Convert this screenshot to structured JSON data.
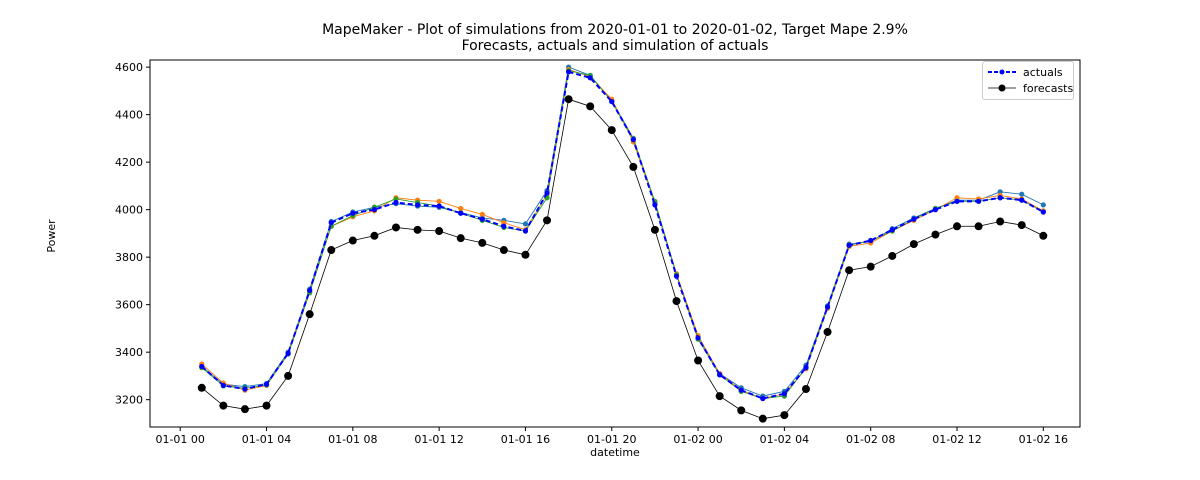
{
  "chart_data": {
    "type": "line",
    "title": "MapeMaker - Plot of simulations from 2020-01-01 to 2020-01-02, Target Mape 2.9%",
    "subtitle": "Forecasts, actuals and simulation of actuals",
    "xlabel": "datetime",
    "ylabel": "Power",
    "x_hours": [
      1,
      2,
      3,
      4,
      5,
      6,
      7,
      8,
      9,
      10,
      11,
      12,
      13,
      14,
      15,
      16,
      17,
      18,
      19,
      20,
      21,
      22,
      23,
      24,
      25,
      26,
      27,
      28,
      29,
      30,
      31,
      32,
      33,
      34,
      35,
      36,
      37,
      38,
      39,
      40
    ],
    "x_start": "2020-01-01 01:00",
    "x_end": "2020-01-02 16:00",
    "xlim_hours": [
      -1.4,
      41.7
    ],
    "xticks": [
      {
        "hour": 0,
        "label": "01-01 00"
      },
      {
        "hour": 4,
        "label": "01-01 04"
      },
      {
        "hour": 8,
        "label": "01-01 08"
      },
      {
        "hour": 12,
        "label": "01-01 12"
      },
      {
        "hour": 16,
        "label": "01-01 16"
      },
      {
        "hour": 20,
        "label": "01-01 20"
      },
      {
        "hour": 24,
        "label": "01-02 00"
      },
      {
        "hour": 28,
        "label": "01-02 04"
      },
      {
        "hour": 32,
        "label": "01-02 08"
      },
      {
        "hour": 36,
        "label": "01-02 12"
      },
      {
        "hour": 40,
        "label": "01-02 16"
      }
    ],
    "ylim": [
      3085,
      4630
    ],
    "yticks": [
      3200,
      3400,
      3600,
      3800,
      4000,
      4200,
      4400,
      4600
    ],
    "legend": {
      "position": "top-right",
      "entries": [
        "actuals",
        "forecasts"
      ]
    },
    "grid": false,
    "series": [
      {
        "name": "actuals",
        "color": "#0000ff",
        "style": "dashed",
        "marker": "small-dot",
        "values": [
          3340,
          3260,
          3245,
          3265,
          3395,
          3660,
          3945,
          3985,
          4000,
          4030,
          4020,
          4015,
          3985,
          3960,
          3930,
          3910,
          4070,
          4580,
          4555,
          4455,
          4295,
          4020,
          3720,
          3460,
          3305,
          3240,
          3205,
          3225,
          3335,
          3590,
          3850,
          3870,
          3915,
          3960,
          4000,
          4035,
          4035,
          4050,
          4040,
          3990
        ]
      },
      {
        "name": "forecasts",
        "color": "#000000",
        "style": "solid",
        "marker": "large-dot",
        "values": [
          3250,
          3175,
          3160,
          3175,
          3300,
          3560,
          3830,
          3870,
          3890,
          3925,
          3915,
          3910,
          3880,
          3860,
          3830,
          3810,
          3955,
          4465,
          4435,
          4335,
          4180,
          3915,
          3615,
          3365,
          3215,
          3155,
          3120,
          3135,
          3245,
          3485,
          3745,
          3760,
          3805,
          3855,
          3895,
          3930,
          3930,
          3950,
          3935,
          3890
        ]
      },
      {
        "color": "#1f77b4",
        "style": "solid",
        "marker": "small-dot",
        "values": [
          3340,
          3265,
          3255,
          3268,
          3400,
          3665,
          3950,
          3990,
          4010,
          4025,
          4015,
          4010,
          3988,
          3965,
          3955,
          3940,
          4080,
          4600,
          4565,
          4460,
          4300,
          4025,
          3725,
          3465,
          3310,
          3250,
          3215,
          3235,
          3345,
          3595,
          3855,
          3865,
          3920,
          3965,
          4005,
          4040,
          4040,
          4075,
          4065,
          4020
        ]
      },
      {
        "color": "#ff7f0e",
        "style": "solid",
        "marker": "small-dot",
        "values": [
          3350,
          3270,
          3240,
          3260,
          3395,
          3655,
          3930,
          3970,
          3995,
          4050,
          4040,
          4035,
          4005,
          3980,
          3945,
          3915,
          4065,
          4590,
          4560,
          4465,
          4285,
          4030,
          3730,
          3470,
          3310,
          3240,
          3205,
          3225,
          3330,
          3585,
          3845,
          3860,
          3910,
          3955,
          4000,
          4050,
          4045,
          4060,
          4045,
          3995
        ]
      },
      {
        "color": "#2ca02c",
        "style": "solid",
        "marker": "small-dot",
        "values": [
          3335,
          3258,
          3248,
          3262,
          3392,
          3650,
          3930,
          3975,
          4010,
          4045,
          4030,
          4015,
          3985,
          3955,
          3925,
          3910,
          4050,
          4585,
          4565,
          4455,
          4295,
          4035,
          3725,
          3455,
          3305,
          3235,
          3205,
          3215,
          3335,
          3590,
          3850,
          3870,
          3910,
          3960,
          4005,
          4035,
          4035,
          4050,
          4040,
          3990
        ]
      }
    ]
  }
}
